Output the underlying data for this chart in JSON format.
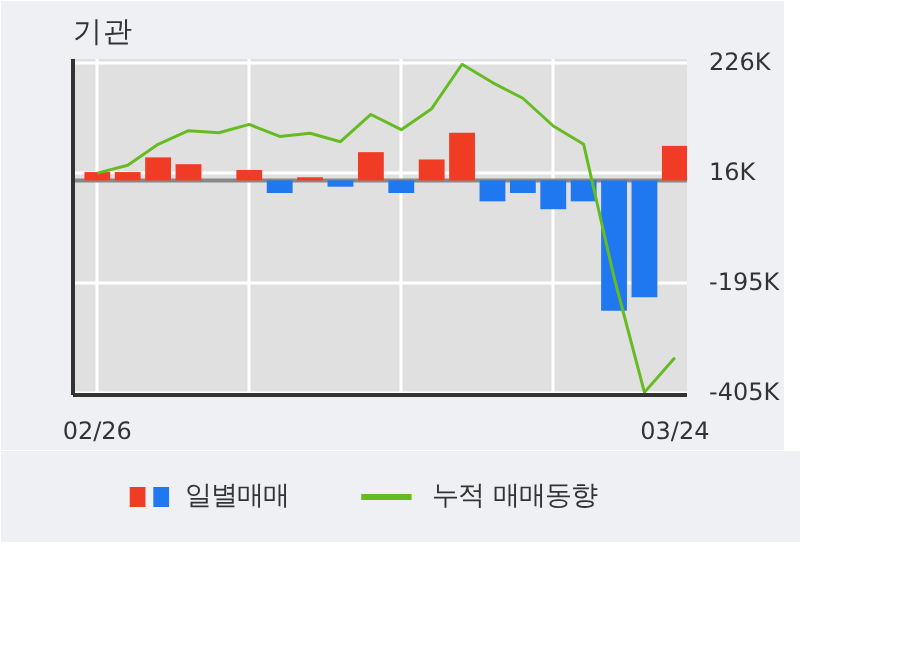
{
  "chart_data": {
    "type": "bar",
    "title": "기관",
    "categories": [
      "02/26",
      null,
      null,
      null,
      null,
      null,
      null,
      null,
      null,
      null,
      null,
      null,
      null,
      null,
      null,
      null,
      null,
      null,
      null,
      "03/24"
    ],
    "series": [
      {
        "name": "일별매매",
        "axis": "y2",
        "colors": [
          "#f03c24",
          "#f03c24",
          "#f03c24",
          "#f03c24",
          "#f03c24",
          "#f03c24",
          "#1f78f0",
          "#f03c24",
          "#1f78f0",
          "#f03c24",
          "#1f78f0",
          "#f03c24",
          "#f03c24",
          "#1f78f0",
          "#1f78f0",
          "#1f78f0",
          "#1f78f0",
          "#1f78f0",
          "#1f78f0",
          "#f03c24"
        ],
        "values": [
          16,
          16,
          44,
          31,
          0,
          20,
          -24,
          6,
          -12,
          54,
          -24,
          40,
          91,
          -40,
          -24,
          -55,
          -40,
          -249,
          -223,
          66
        ]
      },
      {
        "name": "누적 매매동향",
        "type": "line",
        "axis": "y2",
        "color": "#66bb22",
        "values": [
          14,
          29,
          69,
          95,
          91,
          107,
          84,
          90,
          74,
          126,
          97,
          137,
          222,
          187,
          157,
          104,
          69,
          -185,
          -405,
          -339
        ]
      }
    ],
    "y2lim": [
      -410,
      232
    ],
    "y2ticks": [
      {
        "value": 226,
        "label": "226K"
      },
      {
        "value": 16,
        "label": "16K"
      },
      {
        "value": -195,
        "label": "-195K"
      },
      {
        "value": -405,
        "label": "-405K"
      }
    ],
    "ref_lines": [
      {
        "axis": "y2",
        "value": 0,
        "color": "#888888"
      }
    ],
    "grid": true,
    "legend": "bottom"
  }
}
